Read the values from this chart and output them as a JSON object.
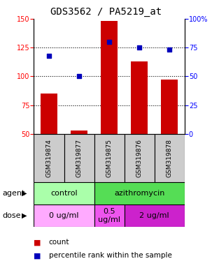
{
  "title": "GDS3562 / PA5219_at",
  "samples": [
    "GSM319874",
    "GSM319877",
    "GSM319875",
    "GSM319876",
    "GSM319878"
  ],
  "counts": [
    85,
    53,
    148,
    113,
    97
  ],
  "percentile_ranks": [
    68,
    50,
    80,
    75,
    73
  ],
  "left_ylim": [
    50,
    150
  ],
  "right_ylim": [
    0,
    100
  ],
  "left_yticks": [
    50,
    75,
    100,
    125,
    150
  ],
  "right_yticks": [
    0,
    25,
    50,
    75,
    100
  ],
  "right_yticklabels": [
    "0",
    "25",
    "50",
    "75",
    "100%"
  ],
  "bar_color": "#cc0000",
  "dot_color": "#0000bb",
  "agent_groups": [
    {
      "label": "control",
      "spans": [
        0,
        2
      ],
      "color": "#aaffaa"
    },
    {
      "label": "azithromycin",
      "spans": [
        2,
        5
      ],
      "color": "#55dd55"
    }
  ],
  "dose_groups": [
    {
      "label": "0 ug/ml",
      "spans": [
        0,
        2
      ],
      "color": "#ffaaff"
    },
    {
      "label": "0.5\nug/ml",
      "spans": [
        2,
        3
      ],
      "color": "#ee55ee"
    },
    {
      "label": "2 ug/ml",
      "spans": [
        3,
        5
      ],
      "color": "#cc22cc"
    }
  ],
  "sample_box_color": "#cccccc",
  "legend_count_color": "#cc0000",
  "legend_dot_color": "#0000bb",
  "title_fontsize": 10,
  "tick_fontsize": 7,
  "bar_label_fontsize": 7,
  "sample_fontsize": 6.5,
  "group_fontsize": 8,
  "legend_fontsize": 7.5
}
